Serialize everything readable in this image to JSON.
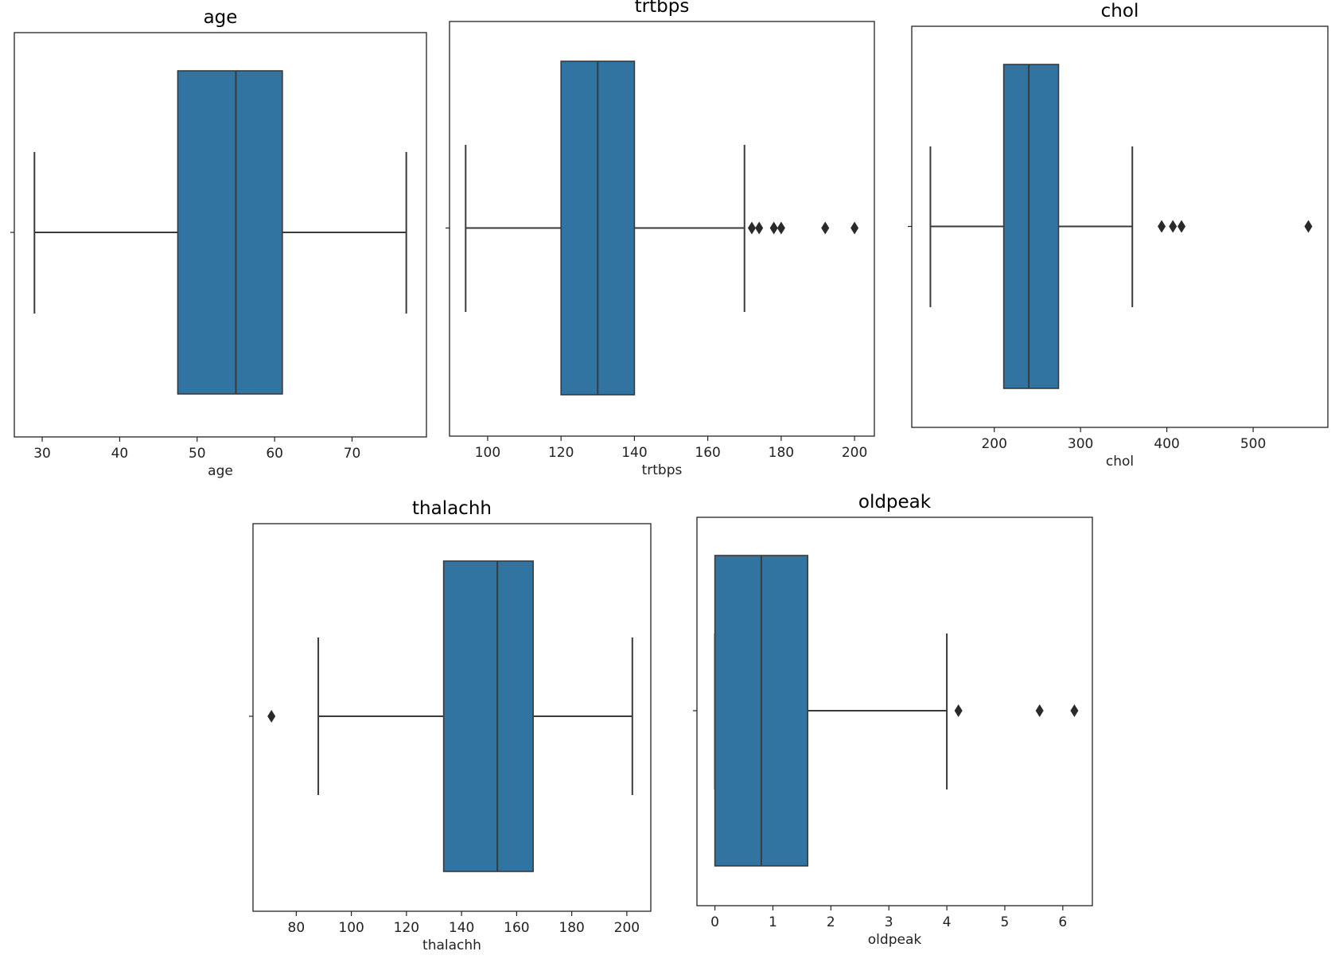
{
  "chart_data": [
    {
      "type": "box",
      "title": "age",
      "xlabel": "age",
      "xlim": [
        26.4,
        79.6
      ],
      "ticks": [
        30,
        40,
        50,
        60,
        70
      ],
      "tick_labels": [
        "30",
        "40",
        "50",
        "60",
        "70"
      ],
      "stats": {
        "whislo": 29,
        "q1": 47.5,
        "med": 55,
        "q3": 61,
        "whishi": 77
      },
      "fliers": []
    },
    {
      "type": "box",
      "title": "trtbps",
      "xlabel": "trtbps",
      "xlim": [
        89.6,
        205.4
      ],
      "ticks": [
        100,
        120,
        140,
        160,
        180,
        200
      ],
      "tick_labels": [
        "100",
        "120",
        "140",
        "160",
        "180",
        "200"
      ],
      "stats": {
        "whislo": 94,
        "q1": 120,
        "med": 130,
        "q3": 140,
        "whishi": 170
      },
      "fliers": [
        172,
        174,
        178,
        180,
        192,
        200
      ]
    },
    {
      "type": "box",
      "title": "chol",
      "xlabel": "chol",
      "xlim": [
        104.4,
        586.6
      ],
      "ticks": [
        200,
        300,
        400,
        500
      ],
      "tick_labels": [
        "200",
        "300",
        "400",
        "500"
      ],
      "stats": {
        "whislo": 126,
        "q1": 211,
        "med": 240,
        "q3": 274.5,
        "whishi": 360
      },
      "fliers": [
        394,
        407,
        417,
        564
      ]
    },
    {
      "type": "box",
      "title": "thalachh",
      "xlabel": "thalachh",
      "xlim": [
        64.3,
        208.7
      ],
      "ticks": [
        80,
        100,
        120,
        140,
        160,
        180,
        200
      ],
      "tick_labels": [
        "80",
        "100",
        "120",
        "140",
        "160",
        "180",
        "200"
      ],
      "stats": {
        "whislo": 88,
        "q1": 133.5,
        "med": 153,
        "q3": 166,
        "whishi": 202
      },
      "fliers": [
        71
      ]
    },
    {
      "type": "box",
      "title": "oldpeak",
      "xlabel": "oldpeak",
      "xlim": [
        -0.31,
        6.51
      ],
      "ticks": [
        0,
        1,
        2,
        3,
        4,
        5,
        6
      ],
      "tick_labels": [
        "0",
        "1",
        "2",
        "3",
        "4",
        "5",
        "6"
      ],
      "stats": {
        "whislo": 0,
        "q1": 0,
        "med": 0.8,
        "q3": 1.6,
        "whishi": 4.0
      },
      "fliers": [
        4.2,
        5.6,
        6.2
      ]
    }
  ],
  "colors": {
    "box": "#3274a1",
    "line": "#3a3a3a",
    "flier": "#2a2a2a"
  }
}
